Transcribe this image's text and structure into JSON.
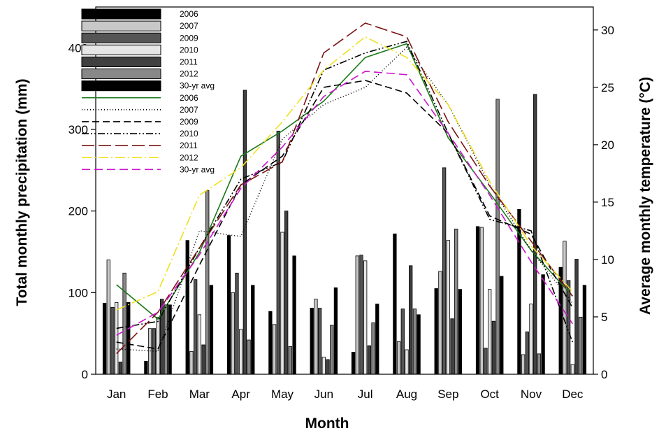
{
  "chart_data": {
    "type": "bar",
    "categories": [
      "Jan",
      "Feb",
      "Mar",
      "Apr",
      "May",
      "Jun",
      "Jul",
      "Aug",
      "Sep",
      "Oct",
      "Nov",
      "Dec"
    ],
    "xlabel": "Month",
    "ylabel_left": "Total monthly precipitation (mm)",
    "ylabel_right": "Average monthly temperature (°C)",
    "ylim_left": [
      0,
      450
    ],
    "yticks_left": [
      0,
      100,
      200,
      300,
      400
    ],
    "ylim_right": [
      0,
      32
    ],
    "yticks_right": [
      0,
      5,
      10,
      15,
      20,
      25,
      30
    ],
    "precip_series": [
      {
        "name": "2006",
        "fill": "#000000",
        "values": [
          87,
          16,
          164,
          170,
          77,
          81,
          27,
          172,
          105,
          181,
          202,
          131
        ]
      },
      {
        "name": "2007",
        "fill": "#c8c8c8",
        "values": [
          140,
          56,
          28,
          100,
          61,
          92,
          145,
          40,
          126,
          180,
          24,
          163
        ]
      },
      {
        "name": "2009",
        "fill": "#555555",
        "values": [
          82,
          56,
          116,
          124,
          298,
          81,
          146,
          80,
          253,
          32,
          52,
          115
        ]
      },
      {
        "name": "2010",
        "fill": "#e6e6e6",
        "values": [
          88,
          70,
          73,
          55,
          174,
          21,
          139,
          30,
          164,
          104,
          86,
          12
        ]
      },
      {
        "name": "2011",
        "fill": "#404040",
        "values": [
          15,
          92,
          36,
          348,
          200,
          18,
          35,
          133,
          68,
          65,
          343,
          141
        ]
      },
      {
        "name": "2012",
        "fill": "#888888",
        "values": [
          124,
          85,
          225,
          42,
          34,
          60,
          63,
          80,
          178,
          337,
          25,
          70
        ]
      },
      {
        "name": "30-yr avg",
        "fill": "#000000",
        "values": [
          88,
          85,
          109,
          109,
          145,
          106,
          86,
          73,
          104,
          120,
          122,
          109
        ]
      }
    ],
    "temp_series": [
      {
        "name": "2006",
        "color": "#1a7a1a",
        "dash": "",
        "values": [
          7.8,
          4.8,
          10.6,
          19.0,
          21.2,
          23.8,
          27.6,
          28.8,
          20.6,
          15.8,
          10.8,
          6.8
        ]
      },
      {
        "name": "2007",
        "color": "#000000",
        "dash": "1,3",
        "values": [
          2.2,
          2.0,
          12.5,
          12.0,
          20.5,
          23.5,
          25.0,
          28.5,
          23.5,
          16.5,
          10.8,
          6.2
        ]
      },
      {
        "name": "2009",
        "color": "#000000",
        "dash": "10,5",
        "values": [
          2.8,
          2.2,
          9.5,
          16.5,
          19.0,
          25.0,
          25.6,
          24.5,
          21.0,
          13.8,
          12.2,
          5.8
        ]
      },
      {
        "name": "2010",
        "color": "#000000",
        "dash": "10,3,2,3,2,3",
        "values": [
          4.0,
          4.6,
          11.0,
          17.0,
          18.5,
          26.5,
          28.0,
          29.0,
          21.0,
          13.5,
          12.5,
          2.8
        ]
      },
      {
        "name": "2011",
        "color": "#7a1414",
        "dash": "18,6",
        "values": [
          1.8,
          5.4,
          11.0,
          16.5,
          18.5,
          28.0,
          30.6,
          29.4,
          22.0,
          16.4,
          11.6,
          6.8
        ]
      },
      {
        "name": "2012",
        "color": "#f0e020",
        "dash": "14,4,2,4",
        "values": [
          5.6,
          7.2,
          15.6,
          18.0,
          22.0,
          26.5,
          29.4,
          27.6,
          23.5,
          16.8,
          11.2,
          7.2
        ]
      },
      {
        "name": "30-yr avg",
        "color": "#cc14cc",
        "dash": "12,6",
        "values": [
          3.4,
          5.4,
          10.4,
          16.2,
          19.8,
          24.2,
          26.4,
          26.1,
          21.0,
          15.6,
          9.8,
          4.4
        ]
      }
    ]
  }
}
